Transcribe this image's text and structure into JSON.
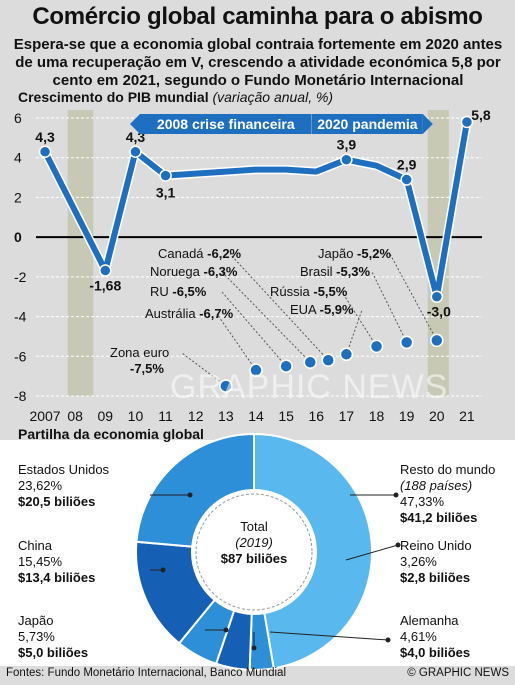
{
  "title": "Comércio global caminha para o abismo",
  "subtitle": "Espera-se que a economia global contraia fortemente em 2020 antes de uma recuperação em V, crescendo a atividade económica 5,8 por cento em 2021, segundo o Fundo Monetário Internacional",
  "gdp_heading": "Crescimento do PIB mundial",
  "gdp_unit": "(variação anual, %)",
  "pie_heading": "Partilha da economia global",
  "watermark": "GRAPHIC NEWS",
  "footer_sources": "Fontes: Fundo Monetário Internacional, Banco Mundial",
  "footer_copyright": "© GRAPHIC NEWS",
  "colors": {
    "line_blue": "#1f6fc0",
    "bg_grey": "#dcdcdc",
    "band_green": "#c7c9b4",
    "pie_light": "#59b8ee",
    "pie_mid": "#2c8fd8",
    "pie_dark": "#1560b5"
  },
  "chart_data": [
    {
      "type": "line",
      "title": "Crescimento do PIB mundial",
      "ylabel": "(variação anual, %)",
      "x": [
        "2007",
        "08",
        "09",
        "10",
        "11",
        "12",
        "13",
        "14",
        "15",
        "16",
        "17",
        "18",
        "19",
        "20",
        "21"
      ],
      "series": [
        {
          "values": [
            4.3,
            null,
            -1.68,
            4.3,
            3.1,
            null,
            null,
            null,
            null,
            null,
            3.9,
            null,
            2.9,
            -3.0,
            5.8
          ]
        }
      ],
      "line_path": [
        {
          "x": 2007,
          "y": 4.3
        },
        {
          "x": 2009,
          "y": -1.68
        },
        {
          "x": 2010,
          "y": 4.3
        },
        {
          "x": 2011,
          "y": 3.1
        },
        {
          "x": 2012,
          "y": 3.2
        },
        {
          "x": 2013,
          "y": 3.3
        },
        {
          "x": 2014,
          "y": 3.4
        },
        {
          "x": 2015,
          "y": 3.4
        },
        {
          "x": 2016,
          "y": 3.3
        },
        {
          "x": 2017,
          "y": 3.9
        },
        {
          "x": 2018,
          "y": 3.6
        },
        {
          "x": 2019,
          "y": 2.9
        },
        {
          "x": 2020,
          "y": -3.0
        },
        {
          "x": 2021,
          "y": 5.8
        }
      ],
      "point_labels": [
        {
          "x": 2007,
          "y": 4.3,
          "text": "4,3"
        },
        {
          "x": 2009,
          "y": -1.68,
          "text": "-1,68"
        },
        {
          "x": 2010,
          "y": 4.3,
          "text": "4,3"
        },
        {
          "x": 2011,
          "y": 3.1,
          "text": "3,1"
        },
        {
          "x": 2017,
          "y": 3.9,
          "text": "3,9"
        },
        {
          "x": 2019,
          "y": 2.9,
          "text": "2,9"
        },
        {
          "x": 2020,
          "y": -3.0,
          "text": "-3,0"
        },
        {
          "x": 2021,
          "y": 5.8,
          "text": "5,8"
        }
      ],
      "ylim": [
        -8,
        6
      ],
      "yticks": [
        6,
        4,
        2,
        0,
        -2,
        -4,
        -6,
        -8
      ],
      "ytick_labels": [
        "6",
        "4",
        "2",
        "0",
        "-2",
        "-4",
        "-6",
        "-8"
      ],
      "xlim": [
        2006.7,
        2021.5
      ],
      "xtick_labels": [
        "2007",
        "08",
        "09",
        "10",
        "11",
        "12",
        "13",
        "14",
        "15",
        "16",
        "17",
        "18",
        "19",
        "20",
        "21"
      ],
      "bands": [
        {
          "from": 2007.75,
          "to": 2008.6,
          "label": "2008 crise financeira"
        },
        {
          "from": 2019.7,
          "to": 2020.4,
          "label": "2020 pandemia"
        }
      ],
      "country_forecasts_2020": [
        {
          "name": "Zona euro",
          "value": -7.5,
          "text": "-7,5%",
          "dot_x": 2013
        },
        {
          "name": "Austrália",
          "value": -6.7,
          "text": "-6,7%",
          "dot_x": 2014
        },
        {
          "name": "RU",
          "value": -6.5,
          "text": "-6,5%",
          "dot_x": 2015
        },
        {
          "name": "Noruega",
          "value": -6.3,
          "text": "-6,3%",
          "dot_x": 2016
        },
        {
          "name": "Canadá",
          "value": -6.2,
          "text": "-6,2%",
          "dot_x": 2016
        },
        {
          "name": "EUA",
          "value": -5.9,
          "text": "-5,9%",
          "dot_x": 2017
        },
        {
          "name": "Rússia",
          "value": -5.5,
          "text": "-5,5%",
          "dot_x": 2018
        },
        {
          "name": "Brasil",
          "value": -5.3,
          "text": "-5,3%",
          "dot_x": 2019
        },
        {
          "name": "Japão",
          "value": -5.2,
          "text": "-5,2%",
          "dot_x": 2020
        }
      ]
    },
    {
      "type": "pie",
      "title": "Partilha da economia global",
      "center_label": "Total",
      "center_year": "(2019)",
      "center_value": "$87 biliões",
      "slices": [
        {
          "name": "Resto do mundo",
          "note": "(188 países)",
          "percent": 47.33,
          "percent_text": "47,33%",
          "value_text": "$41,2 biliões",
          "color": "#59b8ee"
        },
        {
          "name": "Reino Unido",
          "percent": 3.26,
          "percent_text": "3,26%",
          "value_text": "$2,8 biliões",
          "color": "#2c8fd8"
        },
        {
          "name": "Alemanha",
          "percent": 4.61,
          "percent_text": "4,61%",
          "value_text": "$4,0 biliões",
          "color": "#1560b5"
        },
        {
          "name": "Japão",
          "percent": 5.73,
          "percent_text": "5,73%",
          "value_text": "$5,0 biliões",
          "color": "#2c8fd8"
        },
        {
          "name": "China",
          "percent": 15.45,
          "percent_text": "15,45%",
          "value_text": "$13,4 biliões",
          "color": "#1560b5"
        },
        {
          "name": "Estados Unidos",
          "percent": 23.62,
          "percent_text": "23,62%",
          "value_text": "$20,5 biliões",
          "color": "#2c8fd8"
        }
      ]
    }
  ]
}
